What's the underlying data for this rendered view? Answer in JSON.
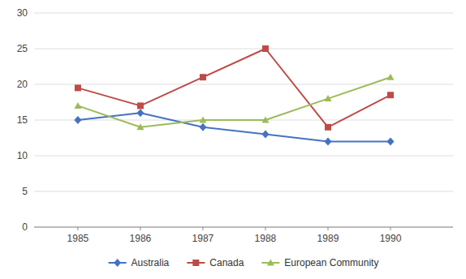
{
  "chart_data": {
    "type": "line",
    "x": [
      1985,
      1986,
      1987,
      1988,
      1989,
      1990
    ],
    "xlim": [
      1984.3,
      1991.0
    ],
    "xticks": [
      1985,
      1986,
      1987,
      1988,
      1989,
      1990
    ],
    "ylim": [
      0,
      30
    ],
    "yticks": [
      0,
      5,
      10,
      15,
      20,
      25,
      30
    ],
    "grid": true,
    "legend": "bottom",
    "series": [
      {
        "name": "Australia",
        "color": "#4472C4",
        "marker": "diamond",
        "values": [
          15,
          16,
          14,
          13,
          12,
          12
        ]
      },
      {
        "name": "Canada",
        "color": "#BE4B48",
        "marker": "square",
        "values": [
          19.5,
          17,
          21,
          25,
          14,
          18.5
        ]
      },
      {
        "name": "European Community",
        "color": "#9BBB59",
        "marker": "triangle",
        "values": [
          17,
          14,
          15,
          15,
          18,
          21
        ]
      }
    ]
  }
}
